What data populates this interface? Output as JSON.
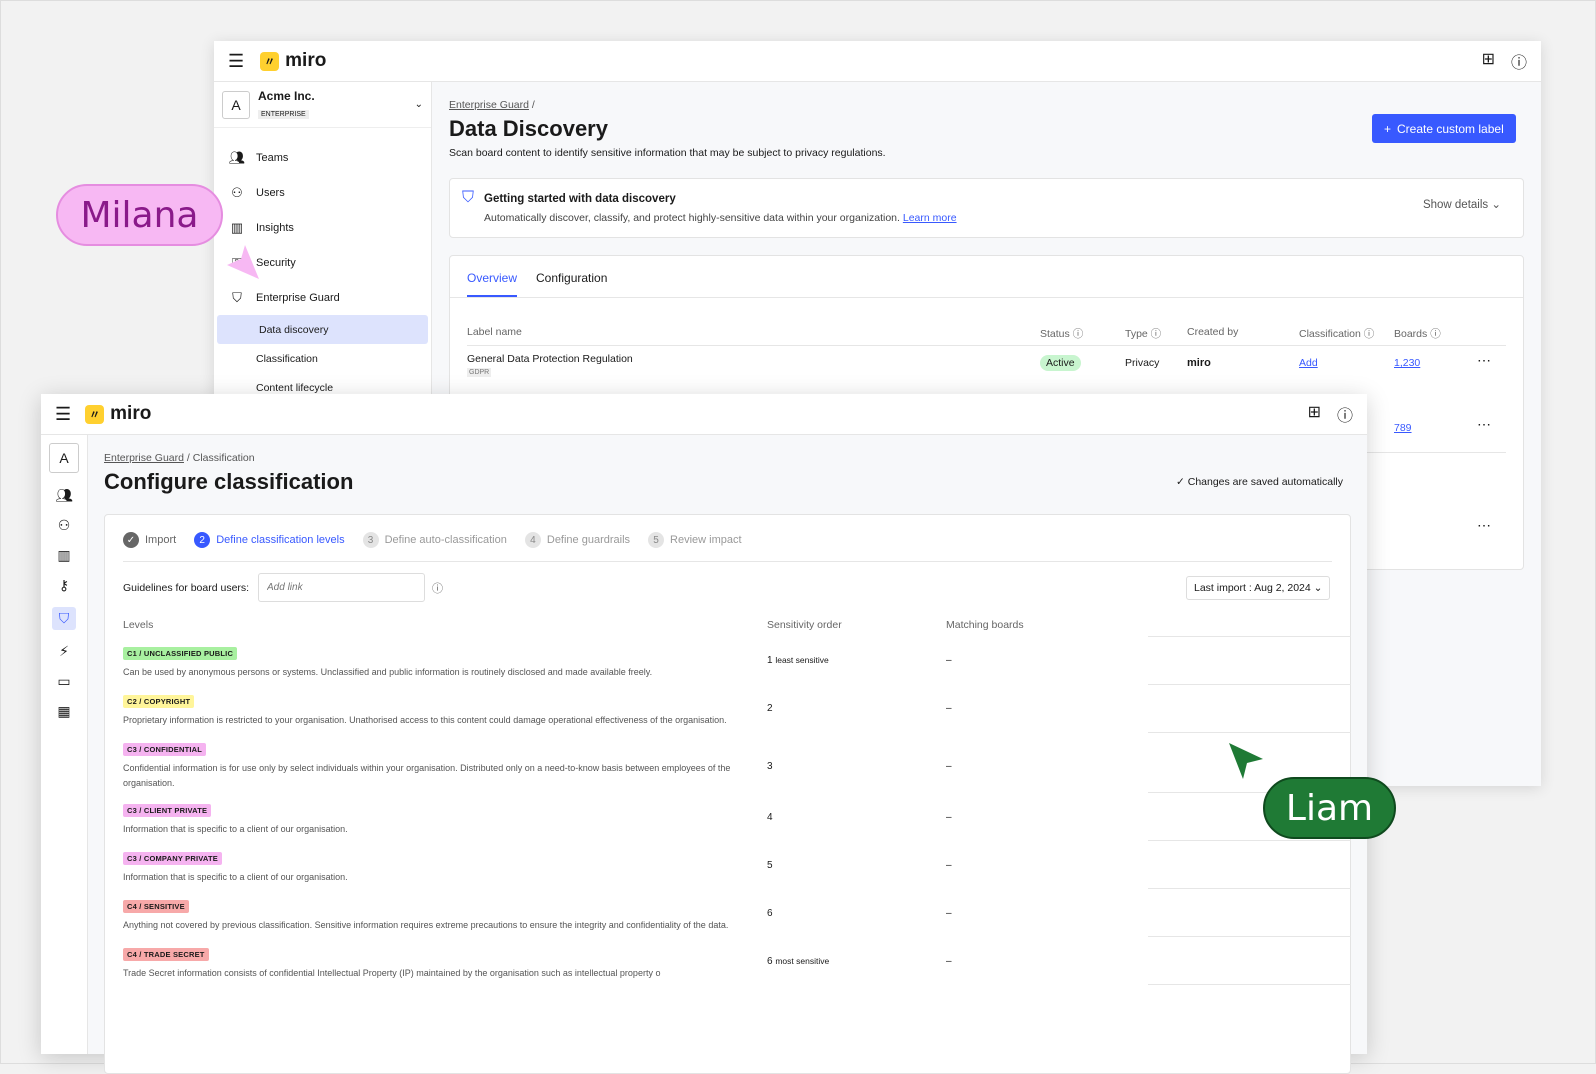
{
  "back": {
    "logo": "miro",
    "org": {
      "avatar": "A",
      "name": "Acme Inc.",
      "plan": "ENTERPRISE"
    },
    "sidebar": [
      {
        "label": "Teams",
        "icon": "teams-icon"
      },
      {
        "label": "Users",
        "icon": "users-icon"
      },
      {
        "label": "Insights",
        "icon": "insights-icon"
      },
      {
        "label": "Security",
        "icon": "security-icon"
      },
      {
        "label": "Enterprise Guard",
        "icon": "shield-icon"
      }
    ],
    "subitems": [
      "Data discovery",
      "Classification",
      "Content lifecycle"
    ],
    "breadcrumb": "Enterprise Guard",
    "title": "Data Discovery",
    "subtitle": "Scan board content to identify sensitive information that may be subject to privacy regulations.",
    "create_button": "Create custom label",
    "banner": {
      "title": "Getting started with data discovery",
      "text": "Automatically discover, classify, and protect highly-sensitive data within your organization.",
      "link": "Learn more",
      "toggle": "Show details"
    },
    "tabs": [
      "Overview",
      "Configuration"
    ],
    "columns": [
      "Label name",
      "Status",
      "Type",
      "Created by",
      "Classification",
      "Boards"
    ],
    "row": {
      "name": "General Data Protection Regulation",
      "tag": "GDPR",
      "status": "Active",
      "type": "Privacy",
      "created_by": "miro",
      "classification": "Add",
      "boards": "1,230"
    },
    "row2_boards": "789"
  },
  "front": {
    "logo": "miro",
    "avatar": "A",
    "breadcrumb": [
      "Enterprise Guard",
      "Classification"
    ],
    "title": "Configure classification",
    "saved": "Changes are saved automatically",
    "steps": [
      {
        "n": "✓",
        "label": "Import"
      },
      {
        "n": "2",
        "label": "Define classification levels"
      },
      {
        "n": "3",
        "label": "Define auto-classification"
      },
      {
        "n": "4",
        "label": "Define guardrails"
      },
      {
        "n": "5",
        "label": "Review impact"
      }
    ],
    "guidelines_label": "Guidelines for board users:",
    "guidelines_placeholder": "Add link",
    "last_import": "Last import : Aug 2, 2024",
    "columns": [
      "Levels",
      "Sensitivity order",
      "Matching boards"
    ],
    "levels": [
      {
        "tag": "C1 / UNCLASSIFIED PUBLIC",
        "color": "#a8f0a0",
        "desc": "Can be used by anonymous persons or systems. Unclassified and public information is routinely disclosed and made available freely.",
        "order": "1",
        "note": "least sensitive",
        "match": "–"
      },
      {
        "tag": "C2 / COPYRIGHT",
        "color": "#fff59a",
        "desc": "Proprietary information is restricted to your organisation. Unathorised access to this content could damage operational effectiveness of the organisation.",
        "order": "2",
        "note": "",
        "match": "–"
      },
      {
        "tag": "C3 / CONFIDENTIAL",
        "color": "#f5b3f0",
        "desc": "Confidential information is for use only by select individuals within your organisation. Distributed only on a need-to-know basis between employees of the organisation.",
        "order": "3",
        "note": "",
        "match": "–"
      },
      {
        "tag": "C3 / CLIENT PRIVATE",
        "color": "#f5b3f0",
        "desc": "Information that is specific to a client of our organisation.",
        "order": "4",
        "note": "",
        "match": "–"
      },
      {
        "tag": "C3 / COMPANY PRIVATE",
        "color": "#f5b3f0",
        "desc": "Information that is specific to a client of our organisation.",
        "order": "5",
        "note": "",
        "match": "–"
      },
      {
        "tag": "C4 / SENSITIVE",
        "color": "#f7a9a9",
        "desc": "Anything not covered by previous classification. Sensitive information requires extreme precautions to ensure the integrity and confidentiality of the data.",
        "order": "6",
        "note": "",
        "match": "–"
      },
      {
        "tag": "C4 / TRADE SECRET",
        "color": "#f7a9a9",
        "desc": "Trade Secret information consists of confidential Intellectual Property (IP) maintained by the organisation such as intellectual property o",
        "order": "6",
        "note": "most sensitive",
        "match": "–"
      }
    ]
  },
  "cursors": [
    {
      "name": "Milana",
      "color": "#f7b8f3",
      "text_color": "#8a1a8a"
    },
    {
      "name": "Liam",
      "color": "#1f7a35",
      "text_color": "#ffffff"
    }
  ]
}
